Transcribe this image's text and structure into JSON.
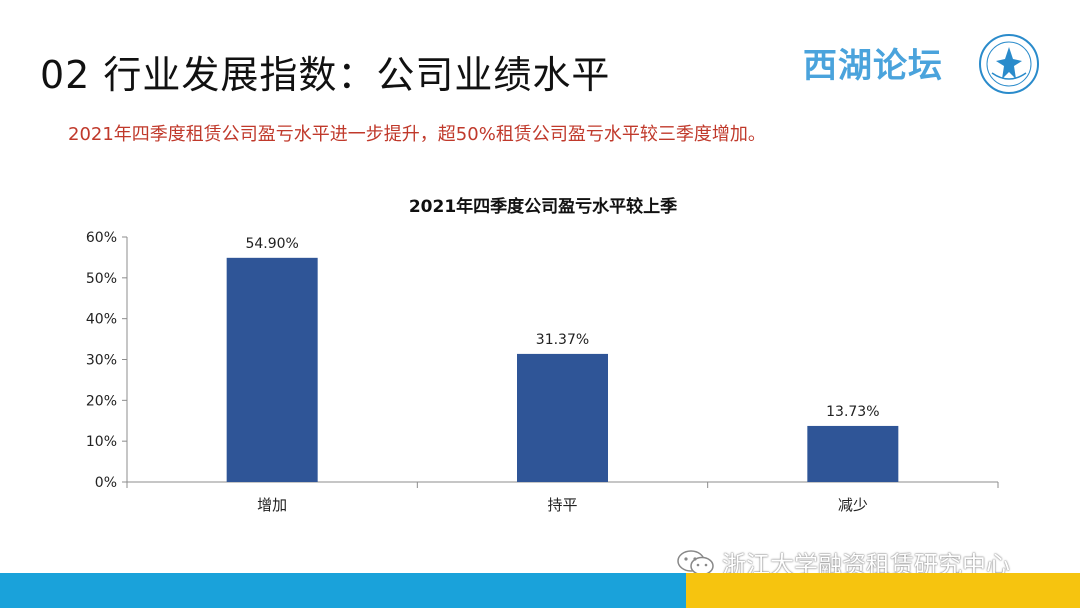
{
  "header": {
    "title": "02 行业发展指数：公司业绩水平",
    "brand": "西湖论坛"
  },
  "subtitle": "2021年四季度租赁公司盈亏水平进一步提升，超50%租赁公司盈亏水平较三季度增加。",
  "footer": {
    "watermark": "浙江大学融资租赁研究中心"
  },
  "colors": {
    "bar": "#2f5597",
    "brand": "#4aa3dc",
    "subtitle": "#c0392b",
    "footer_blue": "#1aa2da",
    "footer_yellow": "#f6c40f"
  },
  "chart_data": {
    "type": "bar",
    "title": "2021年四季度公司盈亏水平较上季",
    "categories": [
      "增加",
      "持平",
      "减少"
    ],
    "values": [
      54.9,
      31.37,
      13.73
    ],
    "data_labels": [
      "54.90%",
      "31.37%",
      "13.73%"
    ],
    "yticks": [
      "0%",
      "10%",
      "20%",
      "30%",
      "40%",
      "50%",
      "60%"
    ],
    "ylim": [
      0,
      60
    ],
    "xlabel": "",
    "ylabel": "",
    "grid": false,
    "legend": "none"
  }
}
